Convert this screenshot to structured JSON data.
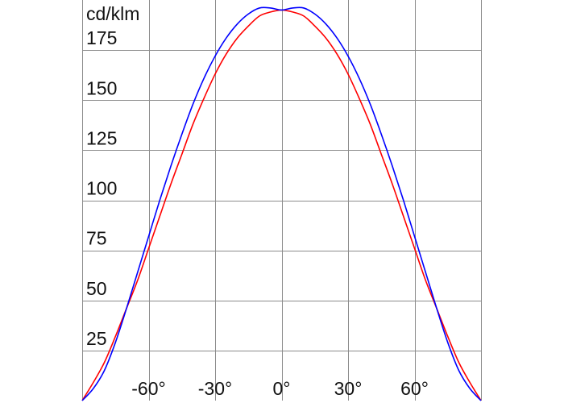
{
  "chart_data": {
    "type": "line",
    "unit_label": "cd/klm",
    "x_ticks": [
      {
        "value": -60,
        "label": "-60°"
      },
      {
        "value": -30,
        "label": "-30°"
      },
      {
        "value": 0,
        "label": "0°"
      },
      {
        "value": 30,
        "label": "30°"
      },
      {
        "value": 60,
        "label": "60°"
      }
    ],
    "y_ticks": [
      {
        "value": 25,
        "label": "25"
      },
      {
        "value": 50,
        "label": "50"
      },
      {
        "value": 75,
        "label": "75"
      },
      {
        "value": 100,
        "label": "100"
      },
      {
        "value": 125,
        "label": "125"
      },
      {
        "value": 150,
        "label": "150"
      },
      {
        "value": 175,
        "label": "175"
      }
    ],
    "xlim": [
      -90,
      90
    ],
    "ylim": [
      0,
      200
    ],
    "grid": true,
    "series": [
      {
        "color": "#ff0000",
        "points": [
          [
            -90,
            0
          ],
          [
            -85,
            9
          ],
          [
            -80,
            19
          ],
          [
            -75,
            32
          ],
          [
            -70,
            46
          ],
          [
            -65,
            60
          ],
          [
            -60,
            76
          ],
          [
            -55,
            92
          ],
          [
            -50,
            108
          ],
          [
            -45,
            123
          ],
          [
            -40,
            138
          ],
          [
            -35,
            151
          ],
          [
            -30,
            163
          ],
          [
            -25,
            173
          ],
          [
            -20,
            181
          ],
          [
            -15,
            187
          ],
          [
            -10,
            192
          ],
          [
            -5,
            194
          ],
          [
            0,
            195
          ],
          [
            5,
            194
          ],
          [
            10,
            192
          ],
          [
            15,
            187
          ],
          [
            20,
            181
          ],
          [
            25,
            173
          ],
          [
            30,
            163
          ],
          [
            35,
            151
          ],
          [
            40,
            138
          ],
          [
            45,
            123
          ],
          [
            50,
            108
          ],
          [
            55,
            92
          ],
          [
            60,
            76
          ],
          [
            65,
            60
          ],
          [
            70,
            46
          ],
          [
            75,
            32
          ],
          [
            80,
            19
          ],
          [
            85,
            9
          ],
          [
            90,
            0
          ]
        ]
      },
      {
        "color": "#0000ff",
        "points": [
          [
            -90,
            0
          ],
          [
            -85,
            6
          ],
          [
            -80,
            15
          ],
          [
            -75,
            29
          ],
          [
            -70,
            46
          ],
          [
            -65,
            64
          ],
          [
            -60,
            82
          ],
          [
            -55,
            100
          ],
          [
            -50,
            117
          ],
          [
            -45,
            133
          ],
          [
            -40,
            148
          ],
          [
            -35,
            161
          ],
          [
            -30,
            172
          ],
          [
            -25,
            181
          ],
          [
            -20,
            188
          ],
          [
            -15,
            193
          ],
          [
            -10,
            196
          ],
          [
            -5,
            196
          ],
          [
            0,
            195
          ],
          [
            5,
            196
          ],
          [
            10,
            196
          ],
          [
            15,
            193
          ],
          [
            20,
            188
          ],
          [
            25,
            181
          ],
          [
            30,
            172
          ],
          [
            35,
            161
          ],
          [
            40,
            148
          ],
          [
            45,
            133
          ],
          [
            50,
            117
          ],
          [
            55,
            100
          ],
          [
            60,
            82
          ],
          [
            65,
            64
          ],
          [
            70,
            46
          ],
          [
            75,
            29
          ],
          [
            80,
            15
          ],
          [
            85,
            6
          ],
          [
            90,
            0
          ]
        ]
      }
    ]
  }
}
